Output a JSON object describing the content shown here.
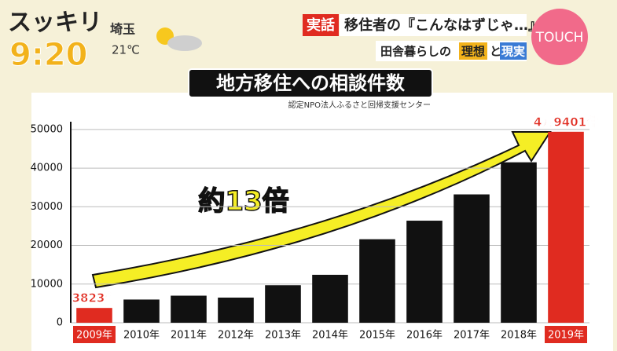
{
  "overlay": {
    "show": "スッキリ",
    "time": "9:20",
    "place": "埼玉",
    "temp": "21℃",
    "tag": "実話",
    "headline": "移住者の『こんなはずじゃ…』",
    "sub_a": "田舎暮らしの",
    "sub_b": "理想",
    "sub_c": "と",
    "sub_d": "現実",
    "button": "TOUCH"
  },
  "chart_data": {
    "type": "bar",
    "title": "地方移住への相談件数",
    "source": "認定NPO法人ふるさと回帰支援センター",
    "annotation": "約13倍",
    "categories": [
      "2009年",
      "2010年",
      "2011年",
      "2012年",
      "2013年",
      "2014年",
      "2015年",
      "2016年",
      "2017年",
      "2018年",
      "2019年"
    ],
    "values": [
      3823,
      6000,
      7000,
      6500,
      9700,
      12400,
      21600,
      26400,
      33200,
      41500,
      49401
    ],
    "value_labels": [
      "3823件",
      null,
      null,
      null,
      null,
      null,
      null,
      null,
      null,
      null,
      "4万9401件"
    ],
    "colors": [
      "#e02b20",
      "#111111",
      "#111111",
      "#111111",
      "#111111",
      "#111111",
      "#111111",
      "#111111",
      "#111111",
      "#111111",
      "#e02b20"
    ],
    "ylim": [
      0,
      52000
    ],
    "yticks": [
      0,
      10000,
      20000,
      30000,
      40000,
      50000
    ],
    "grid": true
  }
}
